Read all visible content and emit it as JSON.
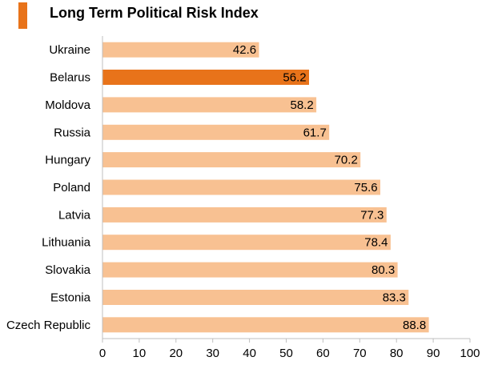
{
  "chart_data": {
    "type": "bar",
    "orientation": "horizontal",
    "title": "Long Term Political Risk Index",
    "categories": [
      "Ukraine",
      "Belarus",
      "Moldova",
      "Russia",
      "Hungary",
      "Poland",
      "Latvia",
      "Lithuania",
      "Slovakia",
      "Estonia",
      "Czech Republic"
    ],
    "values": [
      42.6,
      56.2,
      58.2,
      61.7,
      70.2,
      75.6,
      77.3,
      78.4,
      80.3,
      83.3,
      88.8
    ],
    "value_labels": [
      "42.6",
      "56.2",
      "58.2",
      "61.7",
      "70.2",
      "75.6",
      "77.3",
      "78.4",
      "80.3",
      "83.3",
      "88.8"
    ],
    "highlight": "Belarus",
    "xlim": [
      0,
      100
    ],
    "xticks": [
      "0",
      "10",
      "20",
      "30",
      "40",
      "50",
      "60",
      "70",
      "80",
      "90",
      "100"
    ],
    "xlabel": "",
    "ylabel": "",
    "grid": false,
    "colors": {
      "bar": "#f8c192",
      "highlight": "#e8731a",
      "accent": "#e8731a",
      "axis": "#bfbfbf"
    }
  }
}
